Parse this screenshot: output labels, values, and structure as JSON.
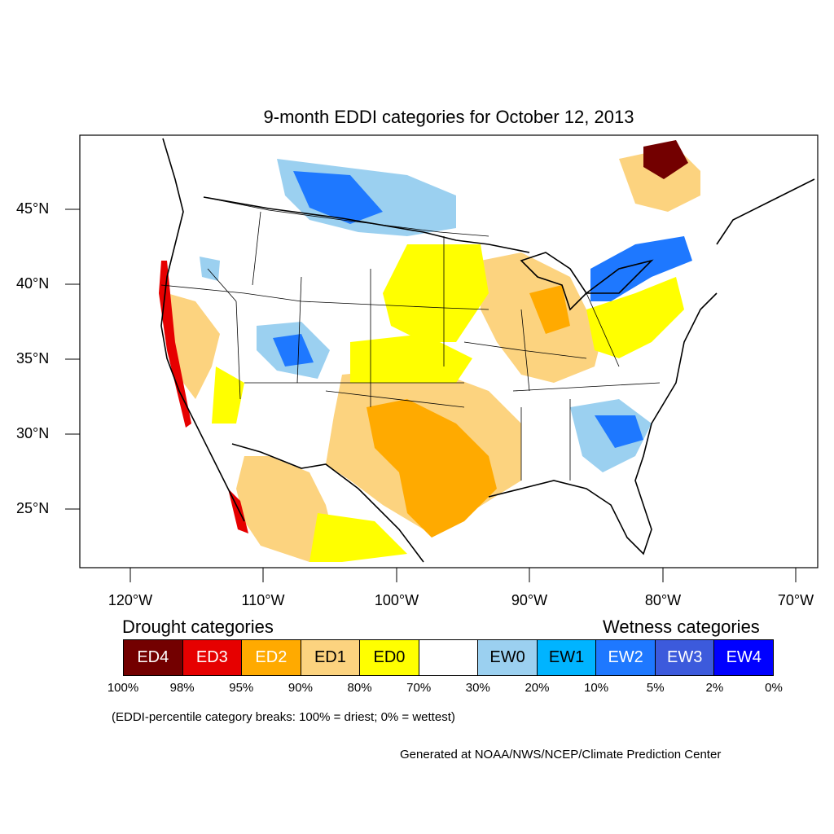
{
  "title": "9-month EDDI categories for October 12, 2013",
  "map": {
    "region": "United States, southern Canada and northern Mexico",
    "lat_labels": [
      "45°N",
      "40°N",
      "35°N",
      "30°N",
      "25°N"
    ],
    "lon_labels": [
      "120°W",
      "110°W",
      "100°W",
      "90°W",
      "80°W",
      "70°W"
    ],
    "colors": {
      "ED4": "#730000",
      "ED3": "#e60000",
      "ED2": "#ffaa00",
      "ED1": "#fcd37f",
      "ED0": "#ffff00",
      "Neutral": "#ffffff",
      "EW0": "#9bd0f0",
      "EW1": "#00b4ff",
      "EW2": "#1e78ff",
      "EW3": "#3c5adc",
      "EW4": "#0000ff"
    }
  },
  "legend": {
    "drought_heading": "Drought categories",
    "wetness_heading": "Wetness categories",
    "boxes": [
      {
        "label": "ED4",
        "color": "#730000",
        "text_color": "#ffffff"
      },
      {
        "label": "ED3",
        "color": "#e60000",
        "text_color": "#ffffff"
      },
      {
        "label": "ED2",
        "color": "#ffaa00",
        "text_color": "#ffffff"
      },
      {
        "label": "ED1",
        "color": "#fcd37f",
        "text_color": "#000000"
      },
      {
        "label": "ED0",
        "color": "#ffff00",
        "text_color": "#000000"
      },
      {
        "label": "",
        "color": "#ffffff",
        "text_color": "#000000"
      },
      {
        "label": "EW0",
        "color": "#9bd0f0",
        "text_color": "#000000"
      },
      {
        "label": "EW1",
        "color": "#00b4ff",
        "text_color": "#000000"
      },
      {
        "label": "EW2",
        "color": "#1e78ff",
        "text_color": "#ffffff"
      },
      {
        "label": "EW3",
        "color": "#3c5adc",
        "text_color": "#ffffff"
      },
      {
        "label": "EW4",
        "color": "#0000ff",
        "text_color": "#ffffff"
      }
    ],
    "breaks": [
      "100%",
      "98%",
      "95%",
      "90%",
      "80%",
      "70%",
      "30%",
      "20%",
      "10%",
      "5%",
      "2%",
      "0%"
    ]
  },
  "note": "(EDDI-percentile category breaks: 100% = driest; 0% = wettest)",
  "credit": "Generated at NOAA/NWS/NCEP/Climate Prediction Center"
}
